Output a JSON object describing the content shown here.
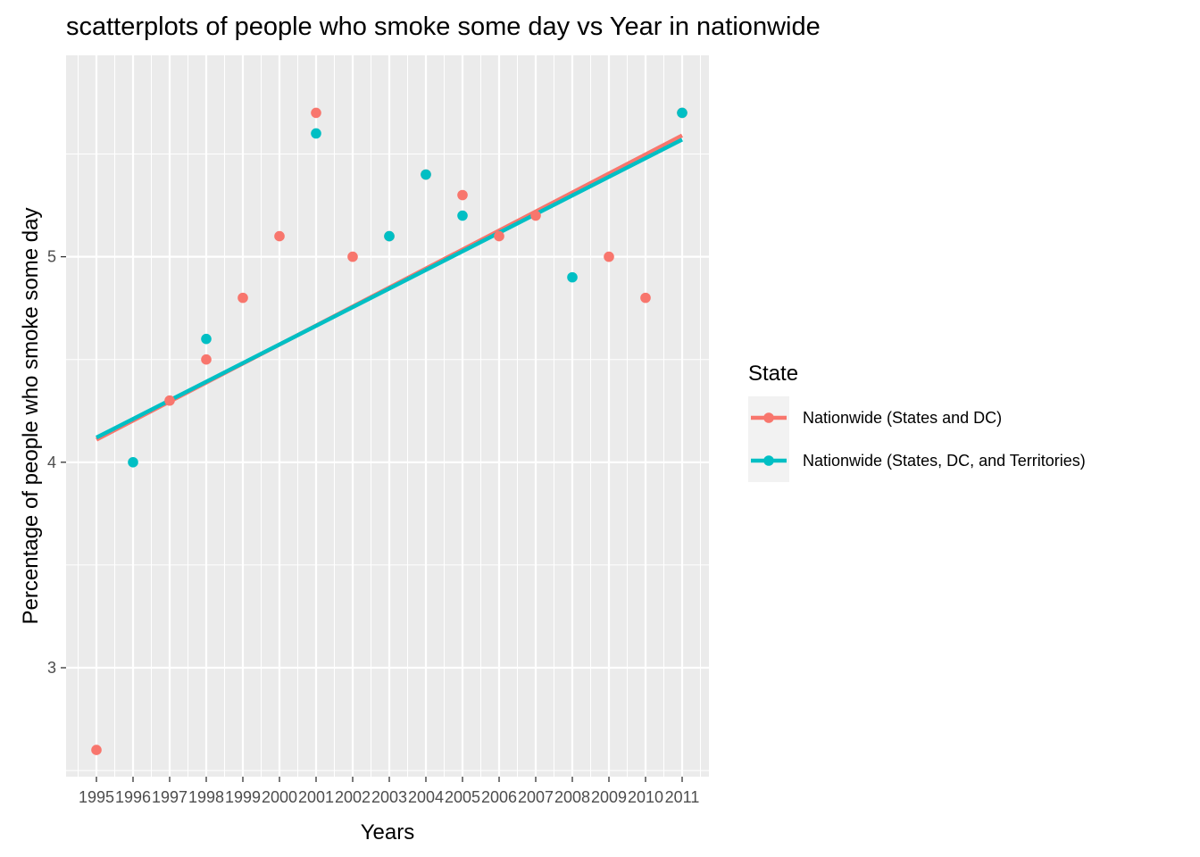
{
  "chart_data": {
    "type": "scatter",
    "title": "scatterplots of people who smoke some day vs Year in nationwide",
    "xlabel": "Years",
    "ylabel": "Percentage of people who smoke some day",
    "x_categories": [
      "1995",
      "1996",
      "1997",
      "1998",
      "1999",
      "2000",
      "2001",
      "2002",
      "2003",
      "2004",
      "2005",
      "2006",
      "2007",
      "2008",
      "2009",
      "2010",
      "2011"
    ],
    "y_ticks": [
      3,
      4,
      5
    ],
    "ylim": [
      2.47,
      5.98
    ],
    "grid": true,
    "legend": {
      "title": "State",
      "position": "right"
    },
    "series": [
      {
        "name": "Nationwide (States and DC)",
        "color": "#F8766D",
        "points": [
          {
            "x": "1995",
            "y": 2.6
          },
          {
            "x": "1997",
            "y": 4.3
          },
          {
            "x": "1998",
            "y": 4.5
          },
          {
            "x": "1999",
            "y": 4.8
          },
          {
            "x": "2000",
            "y": 5.1
          },
          {
            "x": "2001",
            "y": 5.7
          },
          {
            "x": "2002",
            "y": 5.0
          },
          {
            "x": "2003",
            "y": 5.1
          },
          {
            "x": "2004",
            "y": 5.4
          },
          {
            "x": "2005",
            "y": 5.3
          },
          {
            "x": "2006",
            "y": 5.1
          },
          {
            "x": "2007",
            "y": 5.2
          },
          {
            "x": "2009",
            "y": 5.0
          },
          {
            "x": "2010",
            "y": 4.8
          },
          {
            "x": "2011",
            "y": 5.7
          }
        ],
        "trend": {
          "x_start": "1995",
          "y_start": 4.11,
          "x_end": "2011",
          "y_end": 5.59
        }
      },
      {
        "name": "Nationwide (States, DC, and Territories)",
        "color": "#00BFC4",
        "points": [
          {
            "x": "1996",
            "y": 4.0
          },
          {
            "x": "1998",
            "y": 4.6
          },
          {
            "x": "2001",
            "y": 5.6
          },
          {
            "x": "2003",
            "y": 5.1
          },
          {
            "x": "2004",
            "y": 5.4
          },
          {
            "x": "2005",
            "y": 5.2
          },
          {
            "x": "2008",
            "y": 4.9
          },
          {
            "x": "2011",
            "y": 5.7
          }
        ],
        "trend": {
          "x_start": "1995",
          "y_start": 4.12,
          "x_end": "2011",
          "y_end": 5.57
        }
      }
    ]
  }
}
